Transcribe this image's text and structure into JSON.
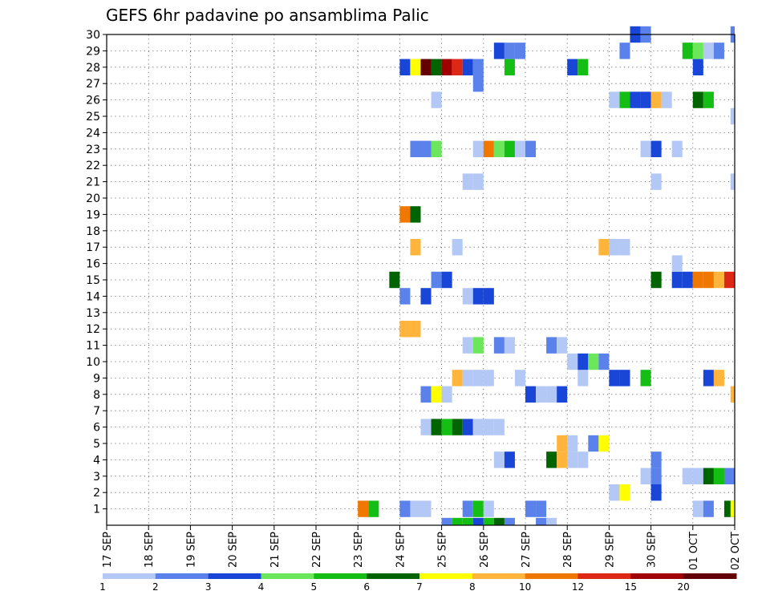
{
  "chart_data": {
    "type": "heatmap",
    "title": "GEFS 6hr padavine po ansamblima Palic",
    "xlabel": "",
    "ylabel": "",
    "x_ticks": [
      "17 SEP",
      "18 SEP",
      "19 SEP",
      "20 SEP",
      "21 SEP",
      "22 SEP",
      "23 SEP",
      "24 SEP",
      "25 SEP",
      "26 SEP",
      "27 SEP",
      "28 SEP",
      "29 SEP",
      "30 SEP",
      "01 OCT",
      "02 OCT"
    ],
    "y_ticks": [
      1,
      2,
      3,
      4,
      5,
      6,
      7,
      8,
      9,
      10,
      11,
      12,
      13,
      14,
      15,
      16,
      17,
      18,
      19,
      20,
      21,
      22,
      23,
      24,
      25,
      26,
      27,
      28,
      29,
      30
    ],
    "x_range_days": [
      0,
      15
    ],
    "y_range": [
      0,
      30
    ],
    "grid": true,
    "color_scale": {
      "labels": [
        "1",
        "2",
        "3",
        "4",
        "5",
        "6",
        "7",
        "8",
        "10",
        "12",
        "15",
        "20"
      ],
      "colors": [
        "#b4c8f5",
        "#5a82ea",
        "#1a46d8",
        "#6ce65a",
        "#14be14",
        "#006400",
        "#ffff00",
        "#ffb43c",
        "#f07800",
        "#dc2814",
        "#a00000",
        "#640000"
      ]
    },
    "cells": [
      {
        "member": 1,
        "day": 6.0,
        "idx": 8
      },
      {
        "member": 1,
        "day": 6.25,
        "idx": 4
      },
      {
        "member": 1,
        "day": 7.0,
        "idx": 1
      },
      {
        "member": 1,
        "day": 7.25,
        "idx": 0
      },
      {
        "member": 1,
        "day": 7.5,
        "idx": 0
      },
      {
        "member": 1,
        "day": 8.5,
        "idx": 1
      },
      {
        "member": 1,
        "day": 8.75,
        "idx": 4
      },
      {
        "member": 1,
        "day": 9.0,
        "idx": 0
      },
      {
        "member": 1,
        "day": 10.0,
        "idx": 1
      },
      {
        "member": 1,
        "day": 10.25,
        "idx": 1
      },
      {
        "member": 1,
        "day": 14.0,
        "idx": 0
      },
      {
        "member": 1,
        "day": 14.25,
        "idx": 1
      },
      {
        "member": 1,
        "day": 14.75,
        "idx": 5
      },
      {
        "member": 1,
        "day": 14.9,
        "idx": 6
      },
      {
        "member": 2,
        "day": 12.0,
        "idx": 0
      },
      {
        "member": 2,
        "day": 12.25,
        "idx": 6
      },
      {
        "member": 2,
        "day": 13.0,
        "idx": 2
      },
      {
        "member": 3,
        "day": 12.75,
        "idx": 0
      },
      {
        "member": 3,
        "day": 13.0,
        "idx": 1
      },
      {
        "member": 3,
        "day": 13.75,
        "idx": 0
      },
      {
        "member": 3,
        "day": 14.0,
        "idx": 0
      },
      {
        "member": 3,
        "day": 14.25,
        "idx": 5
      },
      {
        "member": 3,
        "day": 14.5,
        "idx": 4
      },
      {
        "member": 3,
        "day": 14.75,
        "idx": 1
      },
      {
        "member": 4,
        "day": 9.25,
        "idx": 0
      },
      {
        "member": 4,
        "day": 9.5,
        "idx": 2
      },
      {
        "member": 4,
        "day": 10.5,
        "idx": 5
      },
      {
        "member": 4,
        "day": 10.75,
        "idx": 7
      },
      {
        "member": 4,
        "day": 11.0,
        "idx": 0
      },
      {
        "member": 4,
        "day": 11.25,
        "idx": 0
      },
      {
        "member": 4,
        "day": 13.0,
        "idx": 1
      },
      {
        "member": 5,
        "day": 10.75,
        "idx": 7
      },
      {
        "member": 5,
        "day": 11.0,
        "idx": 0
      },
      {
        "member": 5,
        "day": 11.5,
        "idx": 1
      },
      {
        "member": 5,
        "day": 11.75,
        "idx": 6
      },
      {
        "member": 6,
        "day": 7.5,
        "idx": 0
      },
      {
        "member": 6,
        "day": 7.75,
        "idx": 5
      },
      {
        "member": 6,
        "day": 8.0,
        "idx": 4
      },
      {
        "member": 6,
        "day": 8.25,
        "idx": 5
      },
      {
        "member": 6,
        "day": 8.5,
        "idx": 2
      },
      {
        "member": 6,
        "day": 8.75,
        "idx": 0
      },
      {
        "member": 6,
        "day": 9.0,
        "idx": 0
      },
      {
        "member": 6,
        "day": 9.25,
        "idx": 0
      },
      {
        "member": 8,
        "day": 7.5,
        "idx": 1
      },
      {
        "member": 8,
        "day": 7.75,
        "idx": 6
      },
      {
        "member": 8,
        "day": 8.0,
        "idx": 0
      },
      {
        "member": 8,
        "day": 10.0,
        "idx": 2
      },
      {
        "member": 8,
        "day": 10.25,
        "idx": 0
      },
      {
        "member": 8,
        "day": 10.5,
        "idx": 0
      },
      {
        "member": 8,
        "day": 10.75,
        "idx": 2
      },
      {
        "member": 8,
        "day": 14.9,
        "idx": 7
      },
      {
        "member": 9,
        "day": 8.25,
        "idx": 7
      },
      {
        "member": 9,
        "day": 8.5,
        "idx": 0
      },
      {
        "member": 9,
        "day": 8.75,
        "idx": 0
      },
      {
        "member": 9,
        "day": 9.0,
        "idx": 0
      },
      {
        "member": 9,
        "day": 9.75,
        "idx": 0
      },
      {
        "member": 9,
        "day": 11.25,
        "idx": 0
      },
      {
        "member": 9,
        "day": 12.0,
        "idx": 2
      },
      {
        "member": 9,
        "day": 12.25,
        "idx": 2
      },
      {
        "member": 9,
        "day": 12.75,
        "idx": 4
      },
      {
        "member": 9,
        "day": 14.25,
        "idx": 2
      },
      {
        "member": 9,
        "day": 14.5,
        "idx": 7
      },
      {
        "member": 10,
        "day": 11.0,
        "idx": 0
      },
      {
        "member": 10,
        "day": 11.25,
        "idx": 2
      },
      {
        "member": 10,
        "day": 11.5,
        "idx": 3
      },
      {
        "member": 10,
        "day": 11.75,
        "idx": 1
      },
      {
        "member": 11,
        "day": 8.5,
        "idx": 0
      },
      {
        "member": 11,
        "day": 8.75,
        "idx": 3
      },
      {
        "member": 11,
        "day": 9.25,
        "idx": 1
      },
      {
        "member": 11,
        "day": 9.5,
        "idx": 0
      },
      {
        "member": 11,
        "day": 10.5,
        "idx": 1
      },
      {
        "member": 11,
        "day": 10.75,
        "idx": 0
      },
      {
        "member": 12,
        "day": 7.0,
        "idx": 7
      },
      {
        "member": 12,
        "day": 7.25,
        "idx": 7
      },
      {
        "member": 14,
        "day": 7.0,
        "idx": 1
      },
      {
        "member": 14,
        "day": 7.5,
        "idx": 2
      },
      {
        "member": 14,
        "day": 8.5,
        "idx": 0
      },
      {
        "member": 14,
        "day": 8.75,
        "idx": 2
      },
      {
        "member": 14,
        "day": 9.0,
        "idx": 2
      },
      {
        "member": 15,
        "day": 6.75,
        "idx": 5
      },
      {
        "member": 15,
        "day": 7.75,
        "idx": 1
      },
      {
        "member": 15,
        "day": 8.0,
        "idx": 2
      },
      {
        "member": 15,
        "day": 13.0,
        "idx": 5
      },
      {
        "member": 15,
        "day": 13.5,
        "idx": 2
      },
      {
        "member": 15,
        "day": 13.75,
        "idx": 2
      },
      {
        "member": 15,
        "day": 14.0,
        "idx": 8
      },
      {
        "member": 15,
        "day": 14.25,
        "idx": 8
      },
      {
        "member": 15,
        "day": 14.5,
        "idx": 7
      },
      {
        "member": 15,
        "day": 14.75,
        "idx": 9
      },
      {
        "member": 16,
        "day": 13.5,
        "idx": 0
      },
      {
        "member": 17,
        "day": 7.25,
        "idx": 7
      },
      {
        "member": 17,
        "day": 8.25,
        "idx": 0
      },
      {
        "member": 17,
        "day": 11.75,
        "idx": 7
      },
      {
        "member": 17,
        "day": 12.0,
        "idx": 0
      },
      {
        "member": 17,
        "day": 12.25,
        "idx": 0
      },
      {
        "member": 19,
        "day": 7.0,
        "idx": 8
      },
      {
        "member": 19,
        "day": 7.25,
        "idx": 5
      },
      {
        "member": 21,
        "day": 8.5,
        "idx": 0
      },
      {
        "member": 21,
        "day": 8.75,
        "idx": 0
      },
      {
        "member": 21,
        "day": 13.0,
        "idx": 0
      },
      {
        "member": 21,
        "day": 14.9,
        "idx": 0
      },
      {
        "member": 23,
        "day": 7.25,
        "idx": 1
      },
      {
        "member": 23,
        "day": 7.5,
        "idx": 1
      },
      {
        "member": 23,
        "day": 7.75,
        "idx": 3
      },
      {
        "member": 23,
        "day": 8.75,
        "idx": 0
      },
      {
        "member": 23,
        "day": 9.0,
        "idx": 8
      },
      {
        "member": 23,
        "day": 9.25,
        "idx": 3
      },
      {
        "member": 23,
        "day": 9.5,
        "idx": 4
      },
      {
        "member": 23,
        "day": 9.75,
        "idx": 0
      },
      {
        "member": 23,
        "day": 10.0,
        "idx": 1
      },
      {
        "member": 23,
        "day": 12.75,
        "idx": 0
      },
      {
        "member": 23,
        "day": 13.0,
        "idx": 2
      },
      {
        "member": 23,
        "day": 13.5,
        "idx": 0
      },
      {
        "member": 25,
        "day": 14.9,
        "idx": 0
      },
      {
        "member": 26,
        "day": 7.75,
        "idx": 0
      },
      {
        "member": 26,
        "day": 12.0,
        "idx": 0
      },
      {
        "member": 26,
        "day": 12.25,
        "idx": 4
      },
      {
        "member": 26,
        "day": 12.5,
        "idx": 2
      },
      {
        "member": 26,
        "day": 12.75,
        "idx": 2
      },
      {
        "member": 26,
        "day": 13.0,
        "idx": 7
      },
      {
        "member": 26,
        "day": 13.25,
        "idx": 0
      },
      {
        "member": 26,
        "day": 14.0,
        "idx": 5
      },
      {
        "member": 26,
        "day": 14.25,
        "idx": 4
      },
      {
        "member": 27,
        "day": 8.75,
        "idx": 1
      },
      {
        "member": 28,
        "day": 7.0,
        "idx": 2
      },
      {
        "member": 28,
        "day": 7.25,
        "idx": 6
      },
      {
        "member": 28,
        "day": 7.5,
        "idx": 11
      },
      {
        "member": 28,
        "day": 7.75,
        "idx": 5
      },
      {
        "member": 28,
        "day": 8.0,
        "idx": 10
      },
      {
        "member": 28,
        "day": 8.25,
        "idx": 9
      },
      {
        "member": 28,
        "day": 8.5,
        "idx": 2
      },
      {
        "member": 28,
        "day": 8.75,
        "idx": 1
      },
      {
        "member": 28,
        "day": 9.5,
        "idx": 4
      },
      {
        "member": 28,
        "day": 11.0,
        "idx": 2
      },
      {
        "member": 28,
        "day": 11.25,
        "idx": 4
      },
      {
        "member": 28,
        "day": 14.0,
        "idx": 2
      },
      {
        "member": 29,
        "day": 9.25,
        "idx": 2
      },
      {
        "member": 29,
        "day": 9.5,
        "idx": 1
      },
      {
        "member": 29,
        "day": 9.75,
        "idx": 1
      },
      {
        "member": 29,
        "day": 12.25,
        "idx": 1
      },
      {
        "member": 29,
        "day": 13.75,
        "idx": 4
      },
      {
        "member": 29,
        "day": 14.0,
        "idx": 3
      },
      {
        "member": 29,
        "day": 14.25,
        "idx": 0
      },
      {
        "member": 29,
        "day": 14.5,
        "idx": 1
      },
      {
        "member": 30,
        "day": 12.5,
        "idx": 2
      },
      {
        "member": 30,
        "day": 12.75,
        "idx": 1
      },
      {
        "member": 30,
        "day": 14.9,
        "idx": 1
      }
    ],
    "bottom_strip": [
      {
        "day": 8.0,
        "idx": 1
      },
      {
        "day": 8.25,
        "idx": 4
      },
      {
        "day": 8.5,
        "idx": 4
      },
      {
        "day": 8.75,
        "idx": 2
      },
      {
        "day": 9.0,
        "idx": 4
      },
      {
        "day": 9.25,
        "idx": 5
      },
      {
        "day": 9.5,
        "idx": 1
      },
      {
        "day": 10.25,
        "idx": 1
      },
      {
        "day": 10.5,
        "idx": 0
      }
    ]
  }
}
